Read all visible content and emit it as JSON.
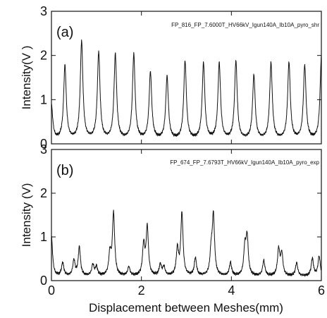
{
  "chart_data": [
    {
      "type": "line",
      "panel_label": "(a)",
      "annotation": "FP_816_FP_7.6000T_HV66kV_Igun140A_Ib10A_pyro_shr",
      "ylabel": "Intensity(V )",
      "xlabel": "",
      "xlim": [
        0,
        6
      ],
      "ylim": [
        0,
        3
      ],
      "yticks": [
        0,
        1,
        2,
        3
      ],
      "yticklabels": [
        "0",
        "1",
        "2",
        "3"
      ],
      "xticks": [
        0,
        2,
        4,
        6
      ],
      "xticklabels": [],
      "baseline": 0.08,
      "peak_width": 0.035,
      "peaks": [
        {
          "x": 0.0,
          "y": 0.85
        },
        {
          "x": 0.3,
          "y": 1.75
        },
        {
          "x": 0.67,
          "y": 2.3
        },
        {
          "x": 1.05,
          "y": 2.05
        },
        {
          "x": 1.42,
          "y": 2.0
        },
        {
          "x": 1.83,
          "y": 2.0
        },
        {
          "x": 2.2,
          "y": 1.6
        },
        {
          "x": 2.57,
          "y": 1.5
        },
        {
          "x": 2.97,
          "y": 1.85
        },
        {
          "x": 3.38,
          "y": 1.8
        },
        {
          "x": 3.73,
          "y": 1.8
        },
        {
          "x": 4.1,
          "y": 1.85
        },
        {
          "x": 4.5,
          "y": 1.52
        },
        {
          "x": 4.88,
          "y": 1.8
        },
        {
          "x": 5.28,
          "y": 1.82
        },
        {
          "x": 5.63,
          "y": 1.75
        },
        {
          "x": 6.0,
          "y": 1.95
        }
      ]
    },
    {
      "type": "line",
      "panel_label": "(b)",
      "annotation": "FP_674_FP_7.6793T_HV66kV_Igun140A_Ib10A_pyro_exp",
      "ylabel": "Intensity (V)",
      "xlabel": "Displacement between Meshes(mm)",
      "xlim": [
        0,
        6
      ],
      "ylim": [
        0,
        3
      ],
      "yticks": [
        0,
        1,
        2,
        3
      ],
      "yticklabels": [
        "0",
        "1",
        "2",
        "3"
      ],
      "xticks": [
        0,
        2,
        4,
        6
      ],
      "xticklabels": [
        "0",
        "2",
        "4",
        "6"
      ],
      "baseline": 0.1,
      "peak_width": 0.03,
      "peaks": [
        {
          "x": 0.0,
          "y": 1.0
        },
        {
          "x": 0.25,
          "y": 0.4
        },
        {
          "x": 0.5,
          "y": 0.45
        },
        {
          "x": 0.62,
          "y": 0.75
        },
        {
          "x": 0.92,
          "y": 0.35
        },
        {
          "x": 1.0,
          "y": 0.3
        },
        {
          "x": 1.3,
          "y": 0.6
        },
        {
          "x": 1.38,
          "y": 1.52
        },
        {
          "x": 1.72,
          "y": 0.3
        },
        {
          "x": 2.05,
          "y": 0.8
        },
        {
          "x": 2.13,
          "y": 1.2
        },
        {
          "x": 2.42,
          "y": 0.35
        },
        {
          "x": 2.5,
          "y": 0.3
        },
        {
          "x": 2.8,
          "y": 0.7
        },
        {
          "x": 2.9,
          "y": 1.52
        },
        {
          "x": 3.2,
          "y": 0.5
        },
        {
          "x": 3.55,
          "y": 0.6
        },
        {
          "x": 3.6,
          "y": 1.45
        },
        {
          "x": 3.98,
          "y": 0.4
        },
        {
          "x": 4.3,
          "y": 0.72
        },
        {
          "x": 4.35,
          "y": 0.95
        },
        {
          "x": 4.72,
          "y": 0.45
        },
        {
          "x": 5.05,
          "y": 0.7
        },
        {
          "x": 5.12,
          "y": 0.6
        },
        {
          "x": 5.45,
          "y": 0.4
        },
        {
          "x": 5.8,
          "y": 0.5
        },
        {
          "x": 5.95,
          "y": 0.55
        }
      ]
    }
  ]
}
